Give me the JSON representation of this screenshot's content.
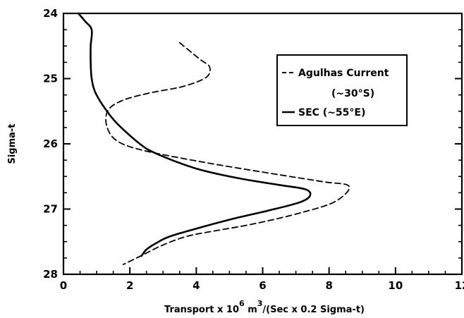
{
  "chart_data": {
    "type": "line",
    "xlabel": "Transport x 10",
    "xlabel_exp1": "6",
    "xlabel_mid": " m",
    "xlabel_exp2": "3",
    "xlabel_tail": "/(Sec x 0.2 Sigma-t)",
    "ylabel": "Sigma-t",
    "xlim": [
      0,
      12
    ],
    "ylim": [
      24,
      28
    ],
    "y_inverted": true,
    "x_ticks": [
      0,
      2,
      4,
      6,
      8,
      10,
      12
    ],
    "y_ticks": [
      24,
      25,
      26,
      27,
      28
    ],
    "x_minor_step": 0.5,
    "y_minor_step": 0.25,
    "grid": false,
    "legend_position": "top-right",
    "series": [
      {
        "name": "Agulhas Current",
        "name_line2": "(~30°S)",
        "style": "dashed",
        "points": [
          [
            3.5,
            24.45
          ],
          [
            4.1,
            24.7
          ],
          [
            4.4,
            24.82
          ],
          [
            4.3,
            24.98
          ],
          [
            3.6,
            25.12
          ],
          [
            2.6,
            25.22
          ],
          [
            1.8,
            25.33
          ],
          [
            1.35,
            25.48
          ],
          [
            1.3,
            25.72
          ],
          [
            1.6,
            25.95
          ],
          [
            2.4,
            26.1
          ],
          [
            4.2,
            26.28
          ],
          [
            6.2,
            26.45
          ],
          [
            7.8,
            26.58
          ],
          [
            8.6,
            26.65
          ],
          [
            8.2,
            26.88
          ],
          [
            7.2,
            27.05
          ],
          [
            5.8,
            27.22
          ],
          [
            4.5,
            27.34
          ],
          [
            3.7,
            27.42
          ],
          [
            3.0,
            27.55
          ],
          [
            2.4,
            27.7
          ],
          [
            1.8,
            27.85
          ]
        ]
      },
      {
        "name": "SEC",
        "name_suffix": "(~55°E)",
        "style": "solid",
        "points": [
          [
            0.45,
            24.0
          ],
          [
            0.65,
            24.12
          ],
          [
            0.85,
            24.25
          ],
          [
            0.82,
            24.5
          ],
          [
            0.82,
            24.75
          ],
          [
            0.85,
            25.0
          ],
          [
            0.95,
            25.2
          ],
          [
            1.2,
            25.42
          ],
          [
            1.6,
            25.68
          ],
          [
            2.3,
            26.0
          ],
          [
            2.8,
            26.15
          ],
          [
            4.0,
            26.38
          ],
          [
            5.3,
            26.53
          ],
          [
            6.5,
            26.63
          ],
          [
            7.3,
            26.7
          ],
          [
            7.42,
            26.8
          ],
          [
            7.1,
            26.9
          ],
          [
            6.2,
            27.02
          ],
          [
            5.1,
            27.15
          ],
          [
            4.0,
            27.3
          ],
          [
            3.2,
            27.42
          ],
          [
            2.8,
            27.52
          ],
          [
            2.5,
            27.62
          ],
          [
            2.35,
            27.72
          ]
        ]
      }
    ]
  }
}
